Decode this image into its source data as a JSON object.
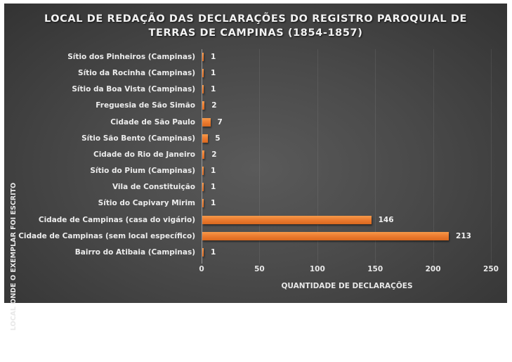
{
  "chart_data": {
    "type": "bar",
    "orientation": "horizontal",
    "title": "LOCAL DE REDAÇÃO DAS DECLARAÇÕES DO REGISTRO PAROQUIAL DE TERRAS DE CAMPINAS (1854-1857)",
    "title_lines": [
      "LOCAL DE REDAÇÃO DAS DECLARAÇÕES DO REGISTRO PAROQUIAL DE",
      "TERRAS DE CAMPINAS (1854-1857)"
    ],
    "xlabel": "QUANTIDADE DE DECLARAÇÕES",
    "ylabel": "LOCAL ONDE O EXEMPLAR FOI ESCRITO",
    "xlim": [
      0,
      250
    ],
    "xticks": [
      "0",
      "50",
      "100",
      "150",
      "200",
      "250"
    ],
    "grid": true,
    "data_labels": true,
    "categories": [
      "Sítio dos Pinheiros (Campinas)",
      "Sítio da Rocinha (Campinas)",
      "Sítio da Boa Vista (Campinas)",
      "Freguesia de São Simão",
      "Cidade de São Paulo",
      "Sítio São Bento (Campinas)",
      "Cidade do Rio de Janeiro",
      "Sítio do Pium (Campinas)",
      "Vila de Constituição",
      "Sítio do Capivary Mirim",
      "Cidade de Campinas  (casa do vigário)",
      "Cidade de Campinas (sem local específico)",
      "Bairro do Atibaia (Campinas)"
    ],
    "values": [
      1,
      1,
      1,
      2,
      7,
      5,
      2,
      1,
      1,
      1,
      146,
      213,
      1
    ],
    "value_labels": [
      "1",
      "1",
      "1",
      "2",
      "7",
      "5",
      "2",
      "1",
      "1",
      "1",
      "146",
      "213",
      "1"
    ],
    "colors": {
      "bar": "#ed7d31",
      "background": "#404040",
      "text": "#ececec"
    }
  }
}
